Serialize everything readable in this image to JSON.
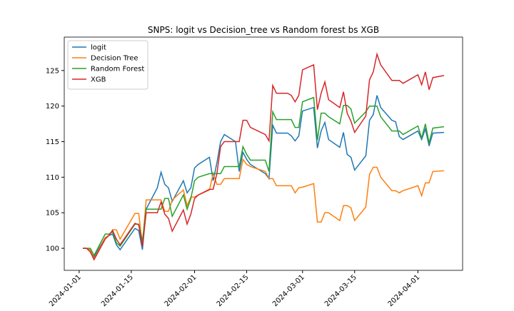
{
  "chart_data": {
    "type": "line",
    "title": "SNPS: logit vs Decision_tree vs Random forest bs XGB",
    "x": [
      "2024-01-02",
      "2024-01-03",
      "2024-01-04",
      "2024-01-05",
      "2024-01-08",
      "2024-01-09",
      "2024-01-10",
      "2024-01-11",
      "2024-01-12",
      "2024-01-16",
      "2024-01-17",
      "2024-01-18",
      "2024-01-19",
      "2024-01-22",
      "2024-01-23",
      "2024-01-24",
      "2024-01-25",
      "2024-01-26",
      "2024-01-29",
      "2024-01-30",
      "2024-01-31",
      "2024-02-01",
      "2024-02-02",
      "2024-02-05",
      "2024-02-06",
      "2024-02-07",
      "2024-02-08",
      "2024-02-09",
      "2024-02-12",
      "2024-02-13",
      "2024-02-14",
      "2024-02-15",
      "2024-02-16",
      "2024-02-20",
      "2024-02-21",
      "2024-02-22",
      "2024-02-23",
      "2024-02-26",
      "2024-02-27",
      "2024-02-28",
      "2024-02-29",
      "2024-03-01",
      "2024-03-04",
      "2024-03-05",
      "2024-03-06",
      "2024-03-07",
      "2024-03-08",
      "2024-03-11",
      "2024-03-12",
      "2024-03-13",
      "2024-03-14",
      "2024-03-15",
      "2024-03-18",
      "2024-03-19",
      "2024-03-20",
      "2024-03-21",
      "2024-03-22",
      "2024-03-25",
      "2024-03-26",
      "2024-03-27",
      "2024-03-28",
      "2024-04-01",
      "2024-04-02",
      "2024-04-03",
      "2024-04-04",
      "2024-04-05",
      "2024-04-08"
    ],
    "series": [
      {
        "name": "logit",
        "color": "#1f77b4",
        "values": [
          100,
          100,
          99.5,
          98.8,
          101.5,
          101.8,
          102,
          100.5,
          99.8,
          102.8,
          102.5,
          99.8,
          105.5,
          108.5,
          110.7,
          109,
          108.5,
          106.6,
          109.5,
          107.8,
          108.5,
          111.3,
          111.8,
          112.8,
          109.5,
          112,
          115,
          116,
          115,
          110.8,
          113.5,
          112.5,
          111.8,
          110.5,
          109.8,
          117.3,
          116.2,
          116.2,
          115.8,
          115.1,
          115.8,
          119.3,
          119.8,
          114.1,
          116.5,
          117.7,
          115.3,
          114.2,
          116.3,
          113.2,
          112.8,
          111,
          113,
          118,
          118.8,
          121.5,
          119.8,
          118,
          117.8,
          115.7,
          115.3,
          116.5,
          115.3,
          116.8,
          114.4,
          116.2,
          116.3
        ]
      },
      {
        "name": "Decision Tree",
        "color": "#ff7f0e",
        "values": [
          100,
          100,
          99.8,
          98.5,
          101.5,
          101.8,
          102.6,
          102.6,
          101.3,
          104.9,
          104.9,
          100.5,
          106.8,
          106.8,
          106.8,
          105.2,
          105.2,
          106.8,
          108.2,
          106,
          107.2,
          107.2,
          107.5,
          108.2,
          110.5,
          109,
          109,
          109.8,
          109.8,
          109.8,
          112.5,
          111.8,
          111.5,
          110.8,
          109.8,
          109.8,
          108.8,
          108.8,
          108.8,
          107.8,
          108.5,
          108.6,
          109.1,
          103.7,
          103.7,
          105,
          105,
          103.9,
          106,
          106,
          105.7,
          103.9,
          105.8,
          110.4,
          111.4,
          111.4,
          110,
          108.1,
          108.1,
          107.8,
          108.1,
          108.8,
          107.4,
          109.2,
          109.2,
          110.8,
          110.9
        ]
      },
      {
        "name": "Random Forest",
        "color": "#2ca02c",
        "values": [
          100,
          100,
          100,
          99,
          102,
          102,
          102.3,
          100.8,
          100.3,
          103.4,
          103.4,
          101,
          105.5,
          105.5,
          105.5,
          107,
          107,
          104.5,
          107.5,
          105.5,
          107,
          109.5,
          110,
          110.5,
          110.5,
          110.5,
          110.5,
          111.5,
          111.5,
          111.5,
          114.3,
          113.2,
          112.4,
          112.4,
          110.8,
          119.2,
          118.1,
          118.1,
          118.1,
          117,
          117,
          120.6,
          121.2,
          115.2,
          119,
          119,
          118.5,
          117.5,
          120.1,
          120.1,
          119.6,
          117.6,
          119.2,
          120,
          120,
          120,
          118.5,
          116.5,
          116.5,
          116.5,
          116,
          117.2,
          115.5,
          117.5,
          114.8,
          116.9,
          117.1
        ]
      },
      {
        "name": "XGB",
        "color": "#d62728",
        "values": [
          100,
          100,
          99.5,
          98.4,
          101.3,
          101.8,
          102.5,
          101.3,
          100.5,
          103.5,
          103.3,
          100.3,
          105,
          105,
          106.5,
          104.8,
          104.2,
          102.4,
          105.4,
          103.4,
          104.8,
          107,
          107.5,
          108.3,
          108.3,
          110.5,
          114.3,
          115,
          115,
          115,
          118,
          118,
          117,
          116,
          115.1,
          122.9,
          121.8,
          121.8,
          121.5,
          120.6,
          121.5,
          125.1,
          125.8,
          119.5,
          121.8,
          123.4,
          120.9,
          119.8,
          122,
          119,
          117.9,
          116.3,
          118.6,
          123.7,
          124.8,
          127.3,
          125.8,
          123.6,
          123.6,
          123.6,
          123.2,
          124.4,
          123,
          124.8,
          122.3,
          124,
          124.3
        ]
      }
    ],
    "xlim": [
      "2023-12-28",
      "2024-04-13"
    ],
    "xticks": [
      "2024-01-01",
      "2024-01-15",
      "2024-02-01",
      "2024-02-15",
      "2024-03-01",
      "2024-03-15",
      "2024-04-01"
    ],
    "ylim": [
      96.9,
      129.7
    ],
    "yticks": [
      100,
      105,
      110,
      115,
      120,
      125
    ],
    "legend": "upper left"
  }
}
